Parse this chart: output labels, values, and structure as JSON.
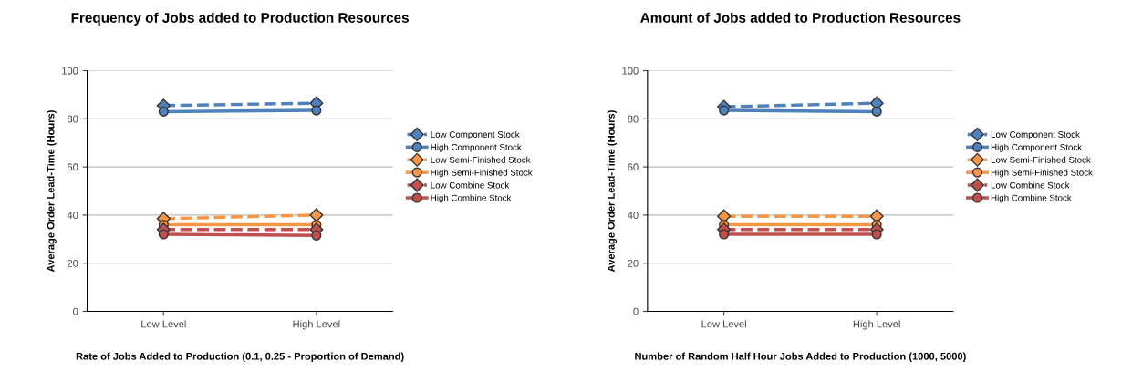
{
  "chart_data": [
    {
      "type": "line",
      "title": "Frequency of Jobs added to Production Resources",
      "xlabel": "Rate of Jobs Added to Production (0.1, 0.25 - Proportion of Demand)",
      "ylabel": "Average Order Lead-Time (Hours)",
      "categories": [
        "Low Level",
        "High Level"
      ],
      "ylim": [
        0,
        100
      ],
      "yticks": [
        0,
        20,
        40,
        60,
        80,
        100
      ],
      "grid": "y",
      "legend": "right",
      "series": [
        {
          "name": "Low Component Stock",
          "color": "#4f81bd",
          "values": [
            85.5,
            86.5
          ],
          "marker": "diamond",
          "line_style": "dashed"
        },
        {
          "name": "High Component Stock",
          "color": "#4f81bd",
          "values": [
            83,
            83.5
          ],
          "marker": "circle",
          "line_style": "solid"
        },
        {
          "name": "Low Semi-Finished Stock",
          "color": "#f79646",
          "values": [
            38.5,
            40
          ],
          "marker": "diamond",
          "line_style": "dashed"
        },
        {
          "name": "High Semi-Finished Stock",
          "color": "#f79646",
          "values": [
            36,
            36
          ],
          "marker": "circle",
          "line_style": "solid"
        },
        {
          "name": "Low Combine Stock",
          "color": "#c0504d",
          "values": [
            34,
            34
          ],
          "marker": "diamond",
          "line_style": "dashed"
        },
        {
          "name": "High Combine Stock",
          "color": "#c0504d",
          "values": [
            32,
            31.5
          ],
          "marker": "circle",
          "line_style": "solid"
        }
      ]
    },
    {
      "type": "line",
      "title": "Amount of Jobs added to Production Resources",
      "xlabel": "Number of Random Half Hour Jobs Added to Production (1000, 5000)",
      "ylabel": "Average Order Lead-Time (Hours)",
      "categories": [
        "Low Level",
        "High Level"
      ],
      "ylim": [
        0,
        100
      ],
      "yticks": [
        0,
        20,
        40,
        60,
        80,
        100
      ],
      "grid": "y",
      "legend": "right",
      "series": [
        {
          "name": "Low Component Stock",
          "color": "#4f81bd",
          "values": [
            85,
            86.5
          ],
          "marker": "diamond",
          "line_style": "dashed"
        },
        {
          "name": "High Component Stock",
          "color": "#4f81bd",
          "values": [
            83.5,
            83
          ],
          "marker": "circle",
          "line_style": "solid"
        },
        {
          "name": "Low Semi-Finished Stock",
          "color": "#f79646",
          "values": [
            39.5,
            39.5
          ],
          "marker": "diamond",
          "line_style": "dashed"
        },
        {
          "name": "High Semi-Finished Stock",
          "color": "#f79646",
          "values": [
            36,
            36
          ],
          "marker": "circle",
          "line_style": "solid"
        },
        {
          "name": "Low Combine Stock",
          "color": "#c0504d",
          "values": [
            34,
            34
          ],
          "marker": "diamond",
          "line_style": "dashed"
        },
        {
          "name": "High Combine Stock",
          "color": "#c0504d",
          "values": [
            32,
            32
          ],
          "marker": "circle",
          "line_style": "solid"
        }
      ]
    }
  ]
}
